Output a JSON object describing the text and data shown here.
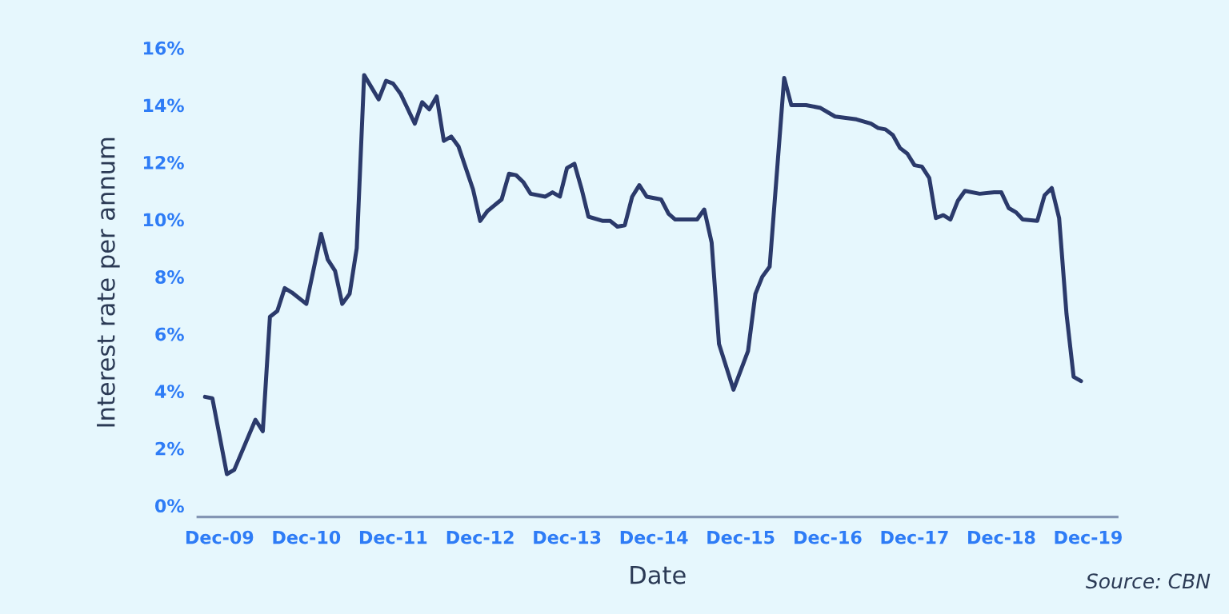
{
  "chart_data": {
    "type": "line",
    "xlabel": "Date",
    "ylabel": "Interest rate per annum",
    "annotations": [
      "Source: CBN"
    ],
    "x": [
      "2009-10",
      "2009-11",
      "2010-01",
      "2010-02",
      "2010-05",
      "2010-06",
      "2010-07",
      "2010-08",
      "2010-09",
      "2010-10",
      "2010-12",
      "2011-02",
      "2011-03",
      "2011-04",
      "2011-05",
      "2011-06",
      "2011-07",
      "2011-08",
      "2011-10",
      "2011-11",
      "2011-12",
      "2012-01",
      "2012-03",
      "2012-04",
      "2012-05",
      "2012-06",
      "2012-07",
      "2012-08",
      "2012-09",
      "2012-11",
      "2012-12",
      "2013-01",
      "2013-03",
      "2013-04",
      "2013-05",
      "2013-06",
      "2013-07",
      "2013-09",
      "2013-10",
      "2013-11",
      "2013-12",
      "2014-01",
      "2014-02",
      "2014-03",
      "2014-05",
      "2014-06",
      "2014-07",
      "2014-08",
      "2014-09",
      "2014-10",
      "2014-11",
      "2015-01",
      "2015-02",
      "2015-03",
      "2015-06",
      "2015-07",
      "2015-08",
      "2015-09",
      "2015-11",
      "2016-01",
      "2016-02",
      "2016-03",
      "2016-04",
      "2016-06",
      "2016-07",
      "2016-08",
      "2016-09",
      "2016-11",
      "2017-01",
      "2017-04",
      "2017-06",
      "2017-07",
      "2017-08",
      "2017-09",
      "2017-10",
      "2017-11",
      "2017-12",
      "2018-01",
      "2018-02",
      "2018-03",
      "2018-04",
      "2018-05",
      "2018-06",
      "2018-07",
      "2018-09",
      "2018-11",
      "2018-12",
      "2019-01",
      "2019-02",
      "2019-03",
      "2019-05",
      "2019-06",
      "2019-07",
      "2019-08",
      "2019-09",
      "2019-10",
      "2019-11"
    ],
    "series": [
      {
        "color": "#2b3a6b",
        "values": [
          3.8,
          3.75,
          1.1,
          1.25,
          3.0,
          2.6,
          6.6,
          6.8,
          7.6,
          7.45,
          7.05,
          9.5,
          8.6,
          8.2,
          7.05,
          7.4,
          9.0,
          15.05,
          14.2,
          14.85,
          14.75,
          14.4,
          13.35,
          14.1,
          13.85,
          14.3,
          12.75,
          12.9,
          12.55,
          11.05,
          9.95,
          10.3,
          10.7,
          11.6,
          11.55,
          11.3,
          10.9,
          10.8,
          10.95,
          10.8,
          11.8,
          11.95,
          11.05,
          10.1,
          9.95,
          9.95,
          9.75,
          9.8,
          10.8,
          11.2,
          10.8,
          10.7,
          10.2,
          10.0,
          10.0,
          10.35,
          9.2,
          5.65,
          4.05,
          5.4,
          7.4,
          8.0,
          8.35,
          14.95,
          14.0,
          14.0,
          14.0,
          13.9,
          13.6,
          13.5,
          13.35,
          13.2,
          13.15,
          12.95,
          12.5,
          12.3,
          11.9,
          11.85,
          11.45,
          10.05,
          10.15,
          10.0,
          10.65,
          11.0,
          10.9,
          10.95,
          10.95,
          10.4,
          10.25,
          10.0,
          9.95,
          10.85,
          11.1,
          10.05,
          6.7,
          4.5,
          4.35
        ]
      }
    ],
    "xlim": [
      "2009-09",
      "2020-04"
    ],
    "ylim": [
      -0.4,
      16
    ],
    "xticks": [
      {
        "value": "2009-12",
        "label": "Dec-09"
      },
      {
        "value": "2010-12",
        "label": "Dec-10"
      },
      {
        "value": "2011-12",
        "label": "Dec-11"
      },
      {
        "value": "2012-12",
        "label": "Dec-12"
      },
      {
        "value": "2013-12",
        "label": "Dec-13"
      },
      {
        "value": "2014-12",
        "label": "Dec-14"
      },
      {
        "value": "2015-12",
        "label": "Dec-15"
      },
      {
        "value": "2016-12",
        "label": "Dec-16"
      },
      {
        "value": "2017-12",
        "label": "Dec-17"
      },
      {
        "value": "2018-12",
        "label": "Dec-18"
      },
      {
        "value": "2019-12",
        "label": "Dec-19"
      }
    ],
    "yticks": [
      {
        "value": 0,
        "label": "0%"
      },
      {
        "value": 2,
        "label": "2%"
      },
      {
        "value": 4,
        "label": "4%"
      },
      {
        "value": 6,
        "label": "6%"
      },
      {
        "value": 8,
        "label": "8%"
      },
      {
        "value": 10,
        "label": "10%"
      },
      {
        "value": 12,
        "label": "12%"
      },
      {
        "value": 14,
        "label": "14%"
      },
      {
        "value": 16,
        "label": "16%"
      }
    ],
    "grid": false
  }
}
